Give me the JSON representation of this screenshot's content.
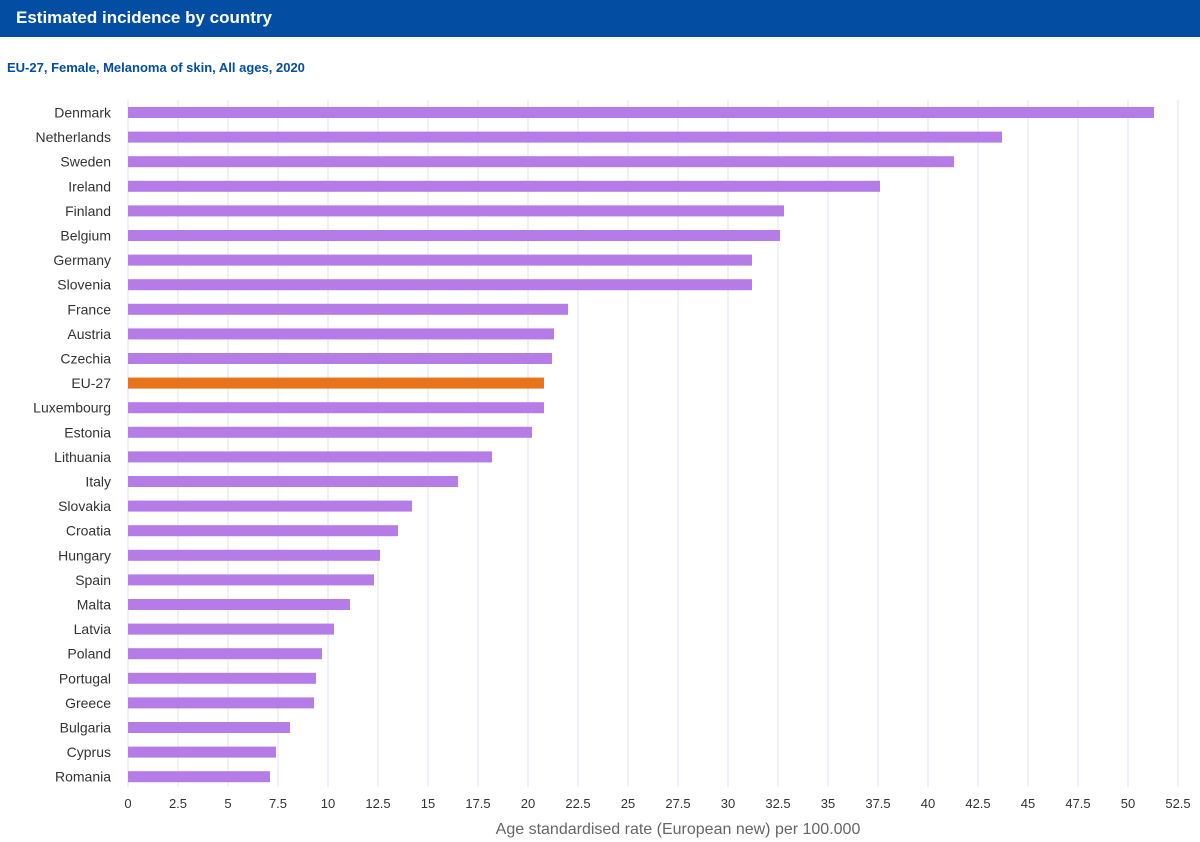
{
  "header": {
    "title": "Estimated incidence by country"
  },
  "colors": {
    "header_bg": "#034ea2",
    "subtitle": "#034ea2",
    "bar": "#b57be6",
    "highlight_bar": "#e8731a",
    "grid": "#dde3ef",
    "text": "#333333"
  },
  "chart_data": {
    "type": "bar",
    "orientation": "horizontal",
    "subtitle": "EU-27, Female, Melanoma of skin, All ages, 2020",
    "xlabel": "Age standardised rate (European new) per 100.000",
    "xlim": [
      0,
      52.5
    ],
    "x_ticks": [
      "0",
      "2.5",
      "5",
      "7.5",
      "10",
      "12.5",
      "15",
      "17.5",
      "20",
      "22.5",
      "25",
      "27.5",
      "30",
      "32.5",
      "35",
      "37.5",
      "40",
      "42.5",
      "45",
      "47.5",
      "50",
      "52.5"
    ],
    "grid": "vertical",
    "highlight": "EU-27",
    "categories": [
      "Denmark",
      "Netherlands",
      "Sweden",
      "Ireland",
      "Finland",
      "Belgium",
      "Germany",
      "Slovenia",
      "France",
      "Austria",
      "Czechia",
      "EU-27",
      "Luxembourg",
      "Estonia",
      "Lithuania",
      "Italy",
      "Slovakia",
      "Croatia",
      "Hungary",
      "Spain",
      "Malta",
      "Latvia",
      "Poland",
      "Portugal",
      "Greece",
      "Bulgaria",
      "Cyprus",
      "Romania"
    ],
    "values": [
      51.3,
      43.7,
      41.3,
      37.6,
      32.8,
      32.6,
      31.2,
      31.2,
      22.0,
      21.3,
      21.2,
      20.8,
      20.8,
      20.2,
      18.2,
      16.5,
      14.2,
      13.5,
      12.6,
      12.3,
      11.1,
      10.3,
      9.7,
      9.4,
      9.3,
      8.1,
      7.4,
      7.1
    ]
  }
}
